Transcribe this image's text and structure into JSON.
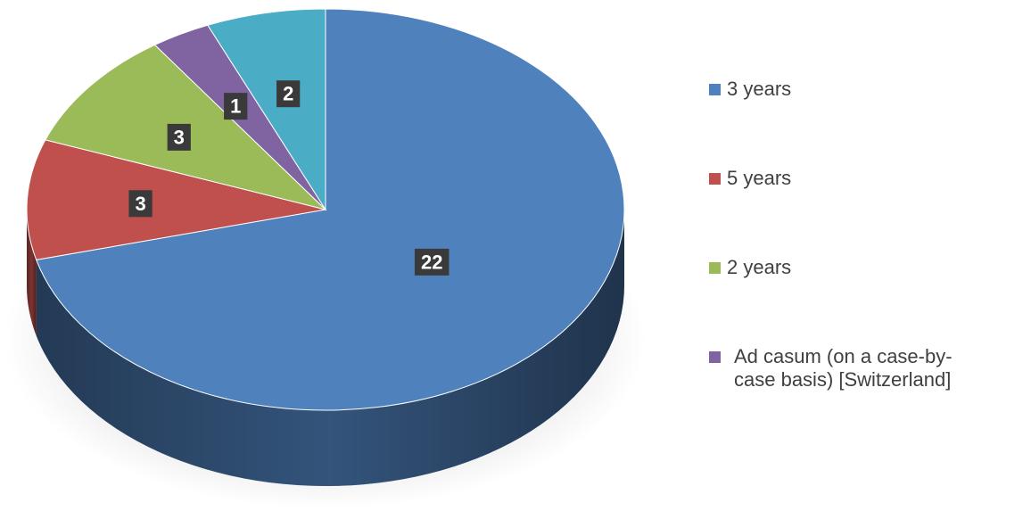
{
  "chart_data": {
    "type": "pie",
    "categories": [
      "3 years",
      "5 years",
      "2 years",
      "Ad casum (on a case-by-case basis) [Switzerland]",
      null
    ],
    "values": [
      22,
      3,
      3,
      1,
      2
    ],
    "colors": [
      "#4f81bd",
      "#c0504d",
      "#9bbb59",
      "#8064a2",
      "#4bacc6"
    ],
    "legend": "right"
  }
}
